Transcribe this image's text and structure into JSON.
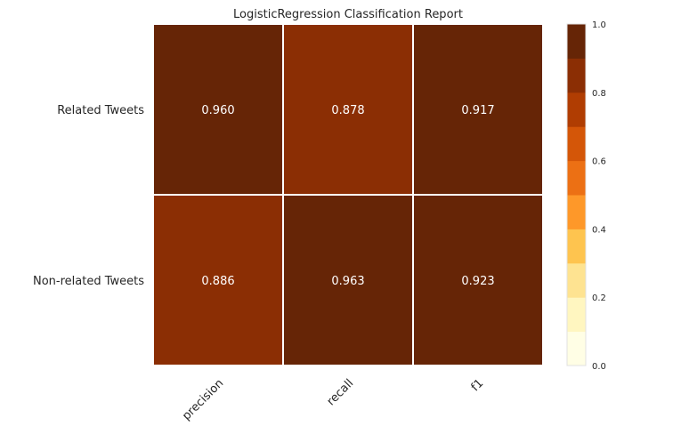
{
  "chart_data": {
    "type": "heatmap",
    "title": "LogisticRegression Classification Report",
    "rows": [
      "Related Tweets",
      "Non-related Tweets"
    ],
    "columns": [
      "precision",
      "recall",
      "f1"
    ],
    "values": [
      [
        0.96,
        0.878,
        0.917
      ],
      [
        0.886,
        0.963,
        0.923
      ]
    ],
    "value_labels": [
      [
        "0.960",
        "0.878",
        "0.917"
      ],
      [
        "0.886",
        "0.963",
        "0.923"
      ]
    ],
    "colorbar": {
      "range": [
        0.0,
        1.0
      ],
      "tick_labels": [
        "0.0",
        "0.2",
        "0.4",
        "0.6",
        "0.8",
        "1.0"
      ],
      "bins": 10,
      "colors": [
        "#fffee5",
        "#fff6c0",
        "#fee391",
        "#fec44f",
        "#fe9829",
        "#ec7014",
        "#d45608",
        "#b03d02",
        "#8b2e04",
        "#662506"
      ]
    },
    "grid": false
  }
}
